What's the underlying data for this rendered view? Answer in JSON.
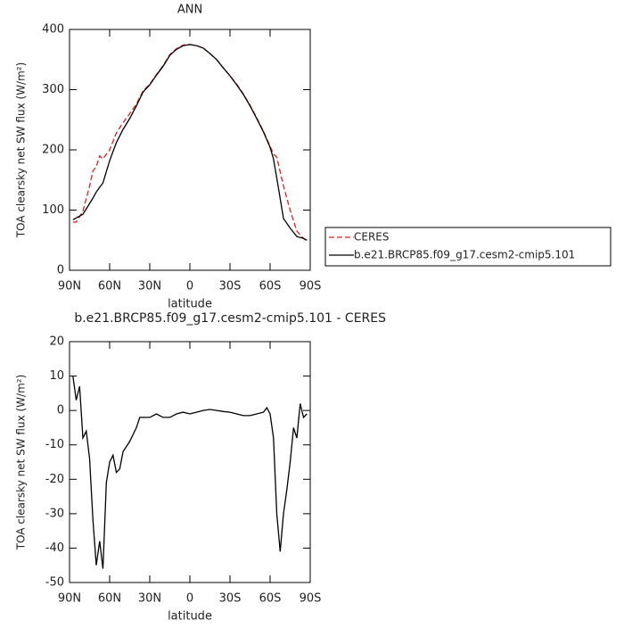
{
  "chart_data": [
    {
      "type": "line",
      "title": "ANN",
      "x_label": "latitude",
      "y_label": "TOA clearsky net SW flux (W/m²)",
      "xlim": [
        90,
        -90
      ],
      "ylim": [
        0,
        400
      ],
      "xticks": [
        {
          "value": 90,
          "label": "90N"
        },
        {
          "value": 60,
          "label": "60N"
        },
        {
          "value": 30,
          "label": "30N"
        },
        0,
        {
          "value": -30,
          "label": "30S"
        },
        {
          "value": -60,
          "label": "60S"
        },
        {
          "value": -90,
          "label": "90S"
        }
      ],
      "yticks": [
        0,
        100,
        200,
        300,
        400
      ],
      "x": [
        87.5,
        85,
        80,
        75,
        72.5,
        70,
        67.5,
        65,
        60,
        55,
        50,
        45,
        40,
        35,
        30,
        25,
        20,
        15,
        10,
        5,
        0,
        -5,
        -10,
        -15,
        -20,
        -25,
        -30,
        -35,
        -40,
        -45,
        -50,
        -55,
        -60,
        -62.5,
        -65,
        -70,
        -75,
        -80,
        -85,
        -87.5
      ],
      "series": [
        {
          "name": "CERES",
          "color": "#e0201b",
          "dash": true,
          "values": [
            80,
            80,
            98,
            140,
            165,
            172,
            190,
            185,
            200,
            228,
            245,
            260,
            276,
            298,
            309,
            325,
            340,
            358,
            368,
            374,
            375,
            373,
            369,
            360,
            350,
            336,
            323,
            309,
            293,
            274,
            253,
            231,
            206,
            193,
            188,
            140,
            100,
            65,
            53,
            48
          ]
        },
        {
          "name": "b.e21.BRCP85.f09_g17.cesm2-cmip5.101",
          "color": "#000000",
          "dash": false,
          "values": [
            84,
            87,
            93,
            111,
            120,
            130,
            138,
            145,
            182,
            212,
            234,
            252,
            273,
            296,
            308,
            324,
            339,
            357,
            367,
            373,
            375,
            373,
            369,
            360,
            350,
            336,
            323,
            308,
            292,
            273,
            252,
            230,
            204,
            185,
            153,
            86,
            70,
            56,
            53,
            50
          ]
        }
      ]
    },
    {
      "type": "line",
      "title": "b.e21.BRCP85.f09_g17.cesm2-cmip5.101 - CERES",
      "x_label": "latitude",
      "y_label": "TOA clearsky net SW flux (W/m²)",
      "xlim": [
        90,
        -90
      ],
      "ylim": [
        -50,
        20
      ],
      "xticks": [
        {
          "value": 90,
          "label": "90N"
        },
        {
          "value": 60,
          "label": "60N"
        },
        {
          "value": 30,
          "label": "30N"
        },
        0,
        {
          "value": -30,
          "label": "30S"
        },
        {
          "value": -60,
          "label": "60S"
        },
        {
          "value": -90,
          "label": "90S"
        }
      ],
      "yticks": [
        -50,
        -40,
        -30,
        -20,
        -10,
        0,
        10,
        20
      ],
      "color": "#000000",
      "x": [
        87.5,
        85,
        82.5,
        80,
        77.5,
        75,
        72.5,
        70,
        67.5,
        65,
        62.5,
        60,
        57.5,
        55,
        52.5,
        50,
        45,
        40,
        37.5,
        30,
        25,
        20,
        15,
        10,
        5,
        0,
        -5,
        -10,
        -15,
        -20,
        -25,
        -30,
        -35,
        -40,
        -45,
        -50,
        -55,
        -57.5,
        -60,
        -62.5,
        -65,
        -67.5,
        -70,
        -72.5,
        -75,
        -77.5,
        -80,
        -82.5,
        -85,
        -87.5
      ],
      "values": [
        10,
        3,
        7,
        -8,
        -6,
        -14,
        -32,
        -45,
        -38,
        -46,
        -21,
        -15,
        -13,
        -18,
        -17,
        -12,
        -9,
        -5,
        -2,
        -2,
        -1,
        -2,
        -2,
        -1,
        -0.5,
        -1,
        -0.5,
        0,
        0.3,
        0,
        -0.3,
        -0.5,
        -1,
        -1.5,
        -1.5,
        -1,
        -0.5,
        0.8,
        -1,
        -8,
        -30,
        -41,
        -30,
        -23,
        -15,
        -5,
        -8,
        2,
        -2,
        -1
      ]
    }
  ]
}
